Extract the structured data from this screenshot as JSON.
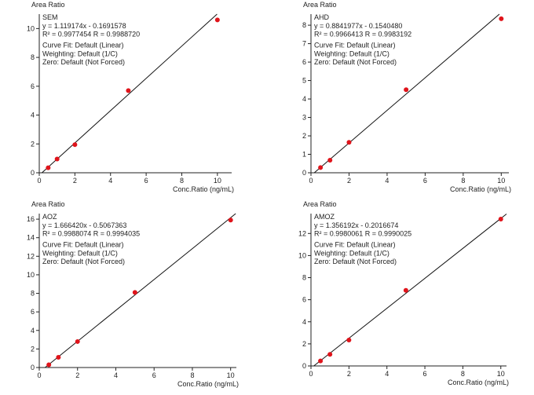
{
  "colors": {
    "point": "#e0141b",
    "line": "#111111",
    "axis": "#222222"
  },
  "chart_data": [
    {
      "type": "scatter",
      "id": "sem",
      "name": "SEM",
      "ylabel": "Area Ratio",
      "xlabel": "Conc.Ratio (ng/mL)",
      "xlim": [
        0,
        10.8
      ],
      "ylim": [
        0,
        11
      ],
      "xticks": [
        0,
        2,
        4,
        6,
        8,
        10
      ],
      "yticks": [
        0,
        2,
        4,
        6,
        8,
        10
      ],
      "x": [
        0.5,
        1,
        2,
        5,
        10
      ],
      "y": [
        0.35,
        0.95,
        1.95,
        5.7,
        10.6
      ],
      "fit": {
        "slope": 1.119174,
        "intercept": -0.1691578
      },
      "equation": "y = 1.119174x - 0.1691578",
      "r2": "R² = 0.9977454",
      "r": "R = 0.9988720",
      "curve_fit": "Curve Fit: Default (Linear)",
      "weighting": "Weighting: Default (1/C)",
      "zero": "Zero: Default (Not Forced)"
    },
    {
      "type": "scatter",
      "id": "ahd",
      "name": "AHD",
      "ylabel": "Area Ratio",
      "xlabel": "Conc.Ratio (ng/mL)",
      "xlim": [
        0,
        10.4
      ],
      "ylim": [
        0,
        8.6
      ],
      "xticks": [
        0,
        2,
        4,
        6,
        8,
        10
      ],
      "yticks": [
        0,
        1,
        2,
        3,
        4,
        5,
        6,
        7,
        8
      ],
      "x": [
        0.5,
        1,
        2,
        5,
        10
      ],
      "y": [
        0.28,
        0.68,
        1.65,
        4.5,
        8.35
      ],
      "fit": {
        "slope": 0.8841977,
        "intercept": -0.154048
      },
      "equation": "y = 0.8841977x - 0.1540480",
      "r2": "R² = 0.9966413",
      "r": "R = 0.9983192",
      "curve_fit": "Curve Fit: Default (Linear)",
      "weighting": "Weighting: Default (1/C)",
      "zero": "Zero: Default (Not Forced)"
    },
    {
      "type": "scatter",
      "id": "aoz",
      "name": "AOZ",
      "ylabel": "Area Ratio",
      "xlabel": "Conc.Ratio (ng/mL)",
      "xlim": [
        0,
        10.3
      ],
      "ylim": [
        0,
        16.6
      ],
      "xticks": [
        0,
        2,
        4,
        6,
        8,
        10
      ],
      "yticks": [
        0,
        2,
        4,
        6,
        8,
        10,
        12,
        14,
        16
      ],
      "x": [
        0.5,
        1,
        2,
        5,
        10
      ],
      "y": [
        0.3,
        1.1,
        2.8,
        8.1,
        15.9
      ],
      "fit": {
        "slope": 1.66642,
        "intercept": -0.5067363
      },
      "equation": "y = 1.666420x - 0.5067363",
      "r2": "R² = 0.9988074",
      "r": "R = 0.9994035",
      "curve_fit": "Curve Fit: Default (Linear)",
      "weighting": "Weighting: Default (1/C)",
      "zero": "Zero: Default (Not Forced)"
    },
    {
      "type": "scatter",
      "id": "amoz",
      "name": "AMOZ",
      "ylabel": "Area Ratio",
      "xlabel": "Conc.Ratio (ng/mL)",
      "xlim": [
        0,
        10.3
      ],
      "ylim": [
        0,
        13.8
      ],
      "xticks": [
        0,
        2,
        4,
        6,
        8,
        10
      ],
      "yticks": [
        0,
        2,
        4,
        6,
        8,
        10,
        12
      ],
      "x": [
        0.5,
        1,
        2,
        5,
        10
      ],
      "y": [
        0.45,
        1.05,
        2.35,
        6.85,
        13.3
      ],
      "fit": {
        "slope": 1.356192,
        "intercept": -0.2016674
      },
      "equation": "y = 1.356192x - 0.2016674",
      "r2": "R² = 0.9980061",
      "r": "R = 0.9990025",
      "curve_fit": "Curve Fit: Default (Linear)",
      "weighting": "Weighting: Default (1/C)",
      "zero": "Zero: Default (Not Forced)"
    }
  ]
}
